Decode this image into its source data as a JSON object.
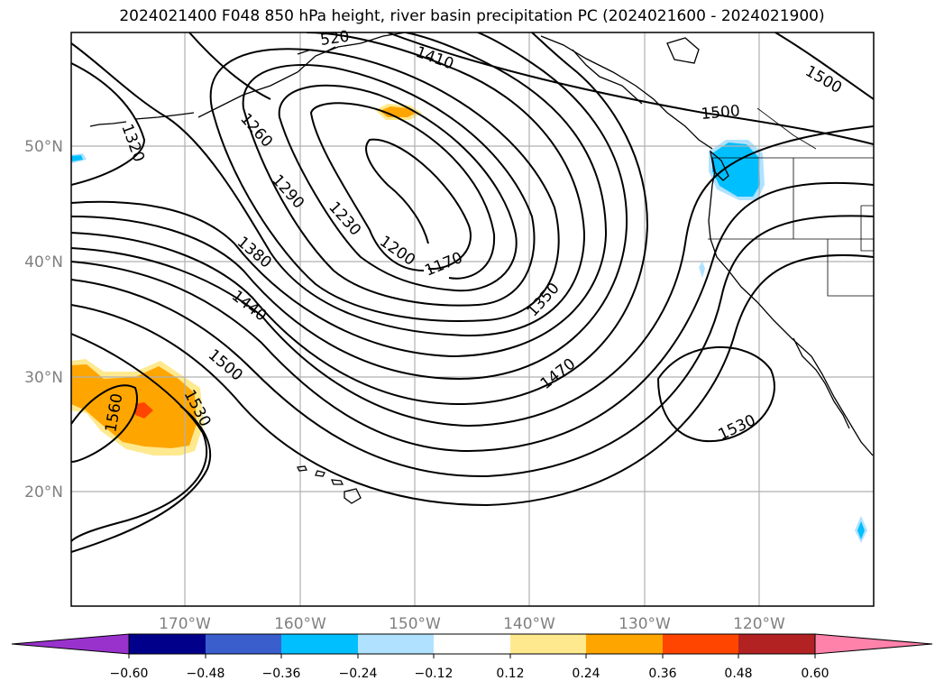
{
  "title": "2024021400 F048 850 hPa height, river basin precipitation PC (2024021600 - 2024021900)",
  "map": {
    "lon_range": [
      -180,
      -110
    ],
    "lat_range": [
      10,
      60
    ],
    "lat_ticks": [
      "50°N",
      "40°N",
      "30°N",
      "20°N"
    ],
    "lon_ticks": [
      "170°W",
      "160°W",
      "150°W",
      "140°W",
      "130°W",
      "120°W"
    ],
    "contour_labels": [
      "1410",
      "1500",
      "1500",
      "1260",
      "1320",
      "1290",
      "1230",
      "1200",
      "1170",
      "1380",
      "1440",
      "1350",
      "1500",
      "1470",
      "1530",
      "1560",
      "1530",
      "520"
    ],
    "colors": {
      "pos_light": "#ffe98f",
      "pos_orange": "#ffa500",
      "pos_red": "#ff4500",
      "neg_cyan": "#00bfff",
      "neg_light": "#b0e2ff"
    }
  },
  "colorbar": {
    "colors": [
      "#9932cc",
      "#00008b",
      "#3a5fcd",
      "#00bfff",
      "#b0e2ff",
      "#ffffff",
      "#ffe98f",
      "#ffa500",
      "#ff4500",
      "#b22222",
      "#ff82ab"
    ],
    "ticks": [
      "−0.60",
      "−0.48",
      "−0.36",
      "−0.24",
      "−0.12",
      "0.12",
      "0.24",
      "0.36",
      "0.48",
      "0.60"
    ]
  }
}
